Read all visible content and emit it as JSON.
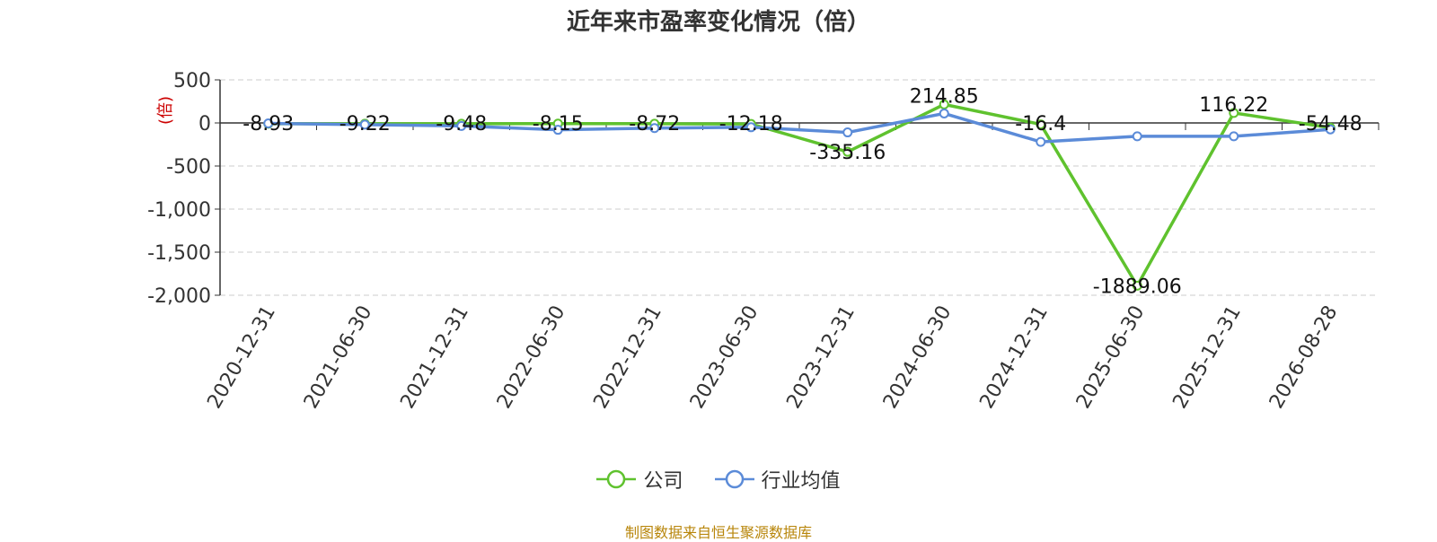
{
  "chart_data": {
    "type": "line",
    "title": "近年来市盈率变化情况（倍）",
    "ylabel": "(倍)",
    "xlabel": "",
    "categories": [
      "2020-12-31",
      "2021-06-30",
      "2021-12-31",
      "2022-06-30",
      "2022-12-31",
      "2023-06-30",
      "2023-12-31",
      "2024-06-30",
      "2024-12-31",
      "2025-06-30",
      "2025-12-31",
      "2026-08-28"
    ],
    "ylim": [
      -2000,
      500
    ],
    "yticks": [
      500,
      0,
      -500,
      -1000,
      -1500,
      -2000
    ],
    "ytick_labels": [
      "500",
      "0",
      "-500",
      "-1,000",
      "-1,500",
      "-2,000"
    ],
    "grid": true,
    "legend_position": "bottom",
    "series": [
      {
        "name": "公司",
        "color": "#5fc22e",
        "values": [
          -8.93,
          -9.22,
          -9.48,
          -8.15,
          -8.72,
          -12.18,
          -335.16,
          214.85,
          -16.4,
          -1889.06,
          116.22,
          -54.48
        ],
        "labels": [
          "-8.93",
          "-9.22",
          "-9.48",
          "-8.15",
          "-8.72",
          "-12.18",
          "-335.16",
          "214.85",
          "-16.4",
          "-1889.06",
          "116.22",
          "-54.48"
        ]
      },
      {
        "name": "行业均值",
        "color": "#5b8bd8",
        "values": [
          -5,
          -20,
          -35,
          -80,
          -60,
          -50,
          -110,
          110,
          -220,
          -155,
          -155,
          -75
        ]
      }
    ]
  },
  "source_note": "制图数据来自恒生聚源数据库"
}
